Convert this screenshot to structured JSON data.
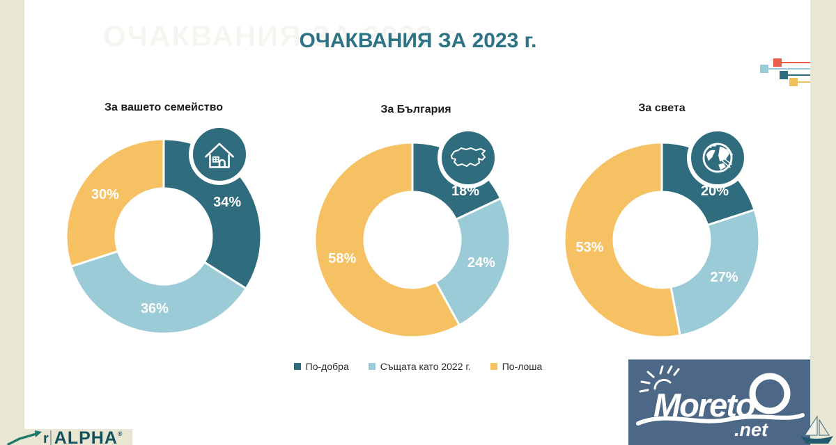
{
  "header": {
    "title": "ОЧАКВАНИЯ ЗА 2023 г.",
    "title_color": "#2C7386",
    "watermark": "ОЧАКВАНИЯ ЗА 2023 г."
  },
  "chart_data": [
    {
      "type": "pie",
      "subtype": "donut",
      "title": "За вашето семейство",
      "icon": "house",
      "labels": [
        "По-добра",
        "Същата като 2022 г.",
        "По-лоша"
      ],
      "values": [
        34,
        36,
        30
      ],
      "display_labels": [
        "34%",
        "36%",
        "30%"
      ],
      "colors": [
        "#2E6C7E",
        "#9CCBD8",
        "#F5C163"
      ],
      "start_angle": "top",
      "direction": "clockwise",
      "legend_position": "bottom-shared"
    },
    {
      "type": "pie",
      "subtype": "donut",
      "title": "За България",
      "icon": "bulgaria-map",
      "labels": [
        "По-добра",
        "Същата като 2022 г.",
        "По-лоша"
      ],
      "values": [
        18,
        24,
        58
      ],
      "display_labels": [
        "18%",
        "24%",
        "58%"
      ],
      "colors": [
        "#2E6C7E",
        "#9CCBD8",
        "#F5C163"
      ],
      "start_angle": "top",
      "direction": "clockwise",
      "legend_position": "bottom-shared"
    },
    {
      "type": "pie",
      "subtype": "donut",
      "title": "За света",
      "icon": "globe",
      "labels": [
        "По-добра",
        "Същата като 2022 г.",
        "По-лоша"
      ],
      "values": [
        20,
        27,
        53
      ],
      "display_labels": [
        "20%",
        "27%",
        "53%"
      ],
      "colors": [
        "#2E6C7E",
        "#9CCBD8",
        "#F5C163"
      ],
      "start_angle": "top",
      "direction": "clockwise",
      "legend_position": "bottom-shared"
    }
  ],
  "legend": {
    "items": [
      {
        "label": "По-добра",
        "color": "#2E6C7E"
      },
      {
        "label": "Същата като 2022 г.",
        "color": "#9CCBD8"
      },
      {
        "label": "По-лоша",
        "color": "#F5C163"
      }
    ]
  },
  "branding": {
    "moreto": {
      "name": "Moreto",
      "tld": ".net",
      "bg": "#4D6787"
    },
    "alpha": {
      "prefix": "r",
      "name": "ALPHA",
      "reg": "®"
    }
  },
  "decoration": {
    "frame_color": "#E9E6D4",
    "squares": [
      "#E8604C",
      "#9CCBD8",
      "#2E6C7E",
      "#F0C05A"
    ]
  }
}
